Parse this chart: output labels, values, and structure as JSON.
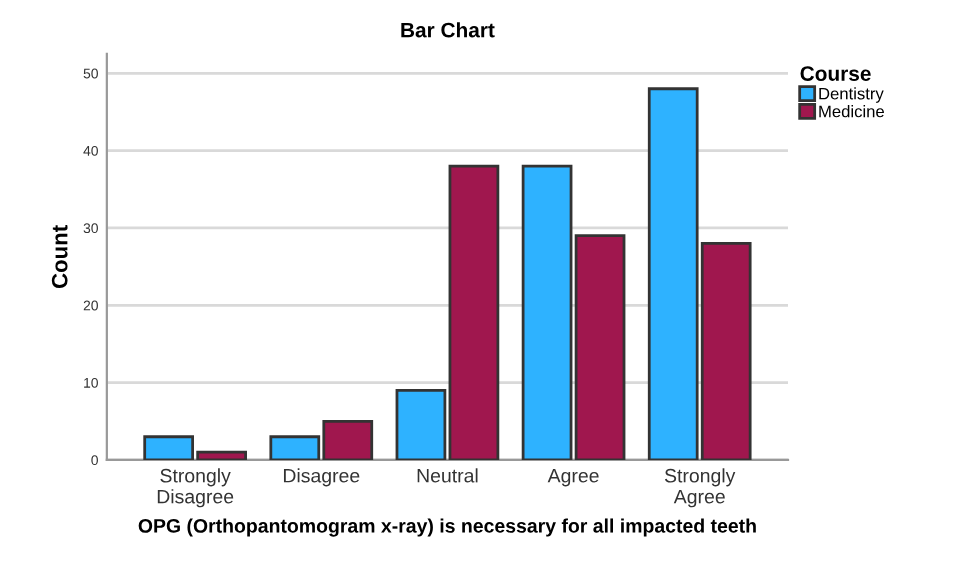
{
  "chart_data": {
    "type": "bar",
    "title": "Bar Chart",
    "xlabel": "OPG (Orthopantomogram x-ray) is necessary for all impacted teeth",
    "ylabel": "Count",
    "categories": [
      "Strongly\nDisagree",
      "Disagree",
      "Neutral",
      "Agree",
      "Strongly\nAgree"
    ],
    "series": [
      {
        "name": "Dentistry",
        "color": "#2eb2ff",
        "values": [
          3,
          3,
          9,
          38,
          48
        ]
      },
      {
        "name": "Medicine",
        "color": "#a0174e",
        "values": [
          1,
          5,
          38,
          29,
          28
        ]
      }
    ],
    "ylim": [
      0,
      52.5
    ],
    "yticks": [
      0,
      10,
      20,
      30,
      40,
      50
    ],
    "grid": "y",
    "legend": "top right",
    "legend_title": "Course"
  }
}
